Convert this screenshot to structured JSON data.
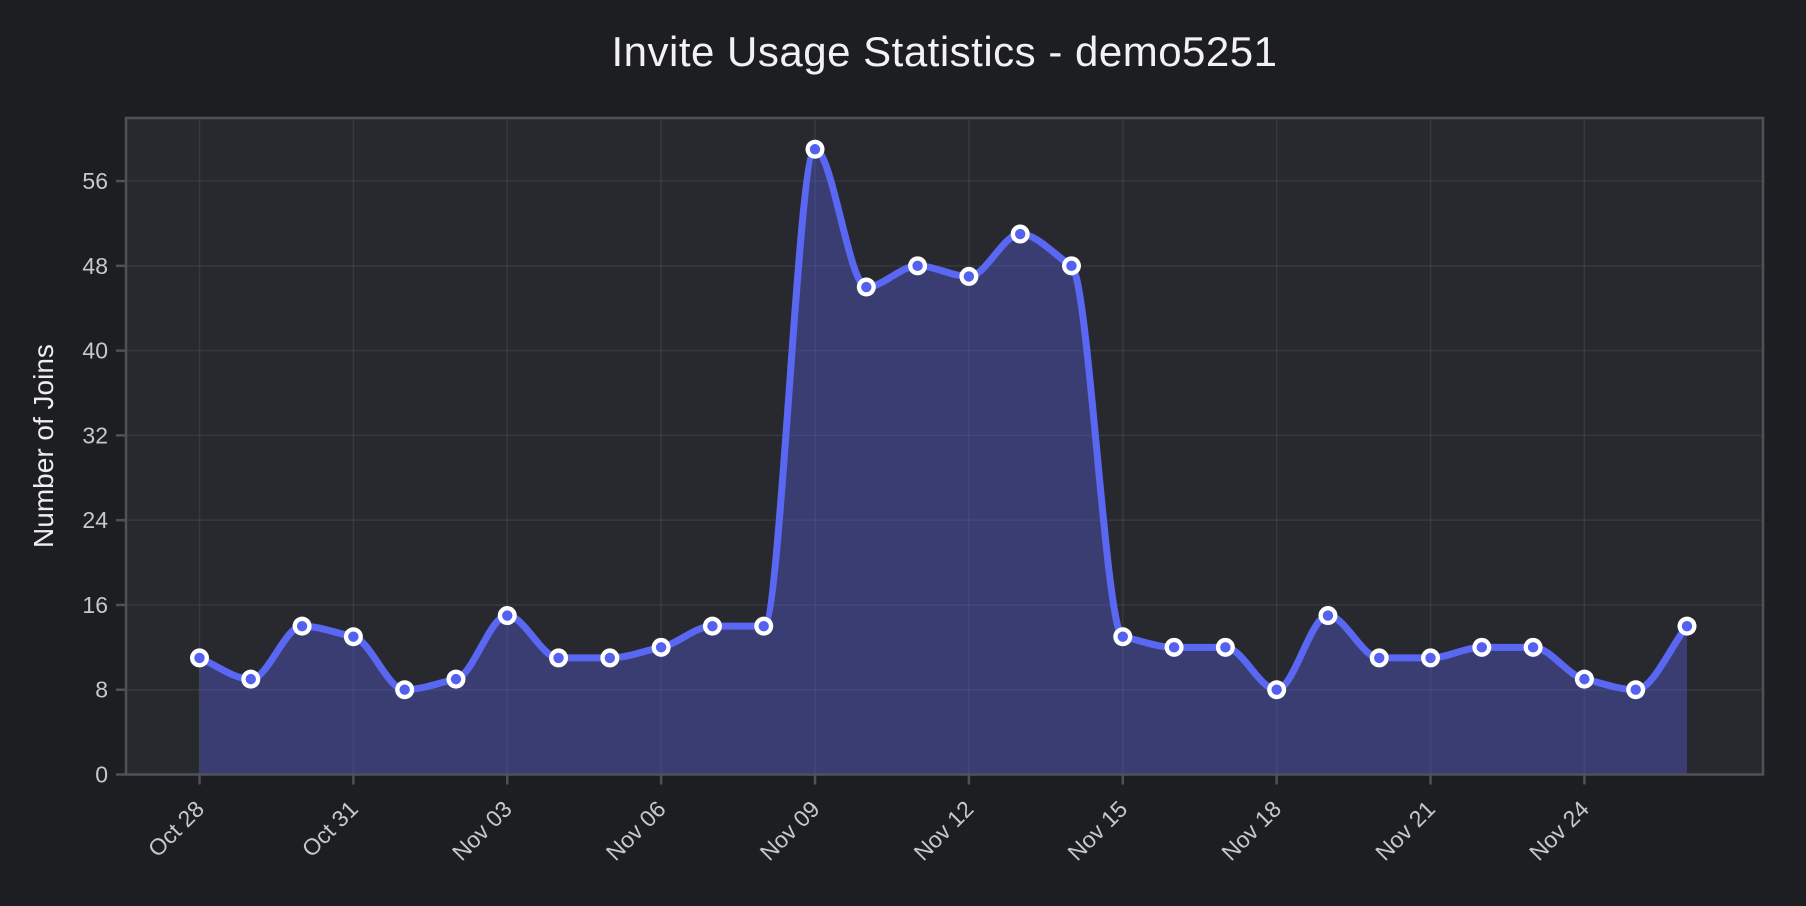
{
  "title": "Invite Usage Statistics - demo5251",
  "chart_data": {
    "type": "area",
    "title": "Invite Usage Statistics - demo5251",
    "xlabel": "",
    "ylabel": "Number of Joins",
    "x": [
      "Oct 28",
      "Oct 29",
      "Oct 30",
      "Oct 31",
      "Nov 01",
      "Nov 02",
      "Nov 03",
      "Nov 04",
      "Nov 05",
      "Nov 06",
      "Nov 07",
      "Nov 08",
      "Nov 09",
      "Nov 10",
      "Nov 11",
      "Nov 12",
      "Nov 13",
      "Nov 14",
      "Nov 15",
      "Nov 16",
      "Nov 17",
      "Nov 18",
      "Nov 19",
      "Nov 20",
      "Nov 21",
      "Nov 22",
      "Nov 23",
      "Nov 24",
      "Nov 25",
      "Nov 26"
    ],
    "values": [
      11,
      9,
      14,
      13,
      8,
      9,
      15,
      11,
      11,
      12,
      14,
      14,
      59,
      46,
      48,
      47,
      51,
      48,
      13,
      12,
      12,
      8,
      15,
      11,
      11,
      12,
      12,
      9,
      8,
      14
    ],
    "y_ticks": [
      0,
      8,
      16,
      24,
      32,
      40,
      48,
      56
    ],
    "x_tick_indices": [
      0,
      3,
      6,
      9,
      12,
      15,
      18,
      21,
      24,
      27
    ],
    "x_tick_labels": [
      "Oct 28",
      "Oct 31",
      "Nov 03",
      "Nov 06",
      "Nov 09",
      "Nov 12",
      "Nov 15",
      "Nov 18",
      "Nov 21",
      "Nov 24"
    ],
    "ylim": [
      0,
      61.95
    ],
    "grid": true,
    "legend": "none",
    "colors": {
      "page_background": "#1d1e22",
      "plot_background": "#28292e",
      "line": "#5a67f2",
      "fill": "rgba(88,101,242,0.35)",
      "marker_face": "#5360f0",
      "marker_edge": "#ffffff",
      "grid": "rgba(255,255,255,0.07)",
      "spine": "#505156",
      "tick_text": "#c7c8cc",
      "title_text": "#f2f2f4"
    }
  }
}
